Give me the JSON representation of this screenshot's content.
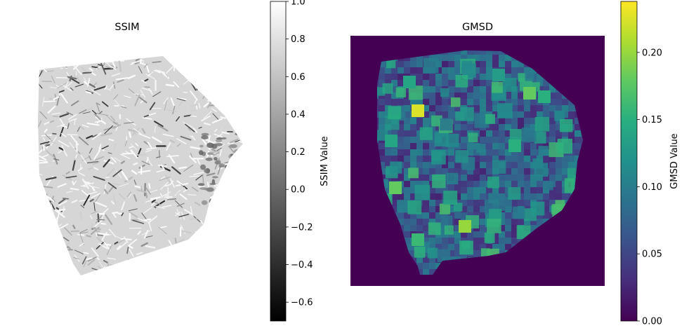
{
  "chart_data": [
    {
      "type": "heatmap",
      "title": "SSIM",
      "colormap": "gray",
      "axes_visible": false,
      "colorbar": {
        "label": "SSIM Value",
        "range": [
          -0.7,
          1.0
        ],
        "ticks": [
          -0.6,
          -0.4,
          -0.2,
          0.0,
          0.2,
          0.4,
          0.6,
          0.8,
          1.0
        ],
        "tick_labels": [
          "−0.6",
          "−0.4",
          "−0.2",
          "0.0",
          "0.2",
          "0.4",
          "0.6",
          "0.8",
          "1.0"
        ]
      },
      "background": "transparent",
      "texture": "mostly near 1.0 (light) with dense dark streaks down to about -0.7"
    },
    {
      "type": "heatmap",
      "title": "GMSD",
      "colormap": "viridis",
      "axes_visible": false,
      "colorbar": {
        "label": "GMSD Value",
        "range": [
          0.0,
          0.238
        ],
        "ticks": [
          0.0,
          0.05,
          0.1,
          0.15,
          0.2
        ],
        "tick_labels": [
          "0.00",
          "0.05",
          "0.10",
          "0.15",
          "0.20"
        ]
      },
      "background_value": 0.0,
      "texture": "blocky patches mostly 0.03-0.15 with hot spots near 0.22"
    }
  ]
}
